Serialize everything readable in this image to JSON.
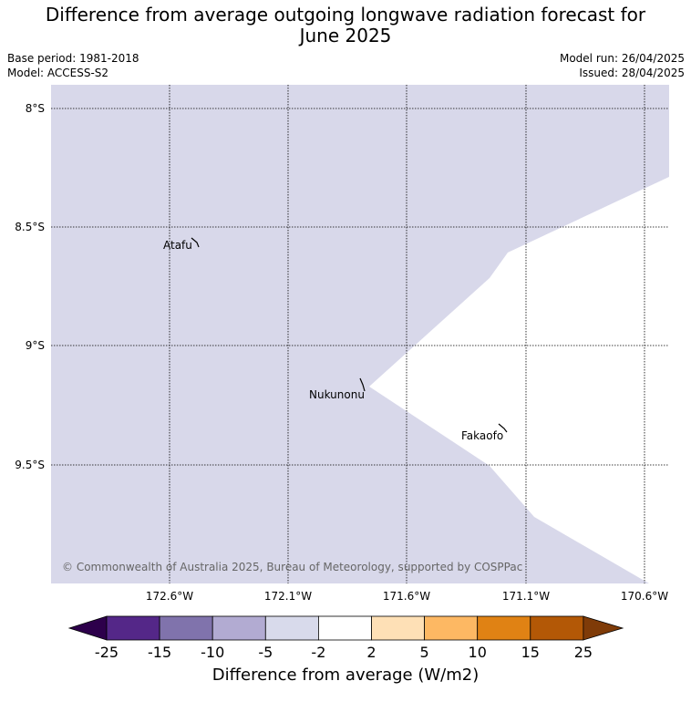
{
  "title_line1": "Difference from average outgoing longwave radiation forecast for",
  "title_line2": "June 2025",
  "info": {
    "base_period": "Base period: 1981-2018",
    "model": "Model: ACCESS-S2",
    "model_run": "Model run: 26/04/2025",
    "issued": "Issued: 28/04/2025"
  },
  "map": {
    "lat_labels": [
      "8°S",
      "8.5°S",
      "9°S",
      "9.5°S"
    ],
    "lon_labels": [
      "172.6°W",
      "172.1°W",
      "171.6°W",
      "171.1°W",
      "170.6°W"
    ],
    "places": [
      "Atafu",
      "Nukunonu",
      "Fakaofo"
    ],
    "copyright": "© Commonwealth of Australia 2025, Bureau of Meteorology, supported by COSPPac",
    "field_color": "#d8d8ea",
    "neutral_color": "#ffffff"
  },
  "colorbar": {
    "ticks": [
      "-25",
      "-15",
      "-10",
      "-5",
      "-2",
      "2",
      "5",
      "10",
      "15",
      "25"
    ],
    "colors": [
      "#2d004b",
      "#542788",
      "#8073ac",
      "#b2abd2",
      "#d8daeb",
      "#ffffff",
      "#fee0b6",
      "#fdb863",
      "#e08214",
      "#b35806",
      "#7f3b08"
    ],
    "label": "Difference from average (W/m2)"
  }
}
